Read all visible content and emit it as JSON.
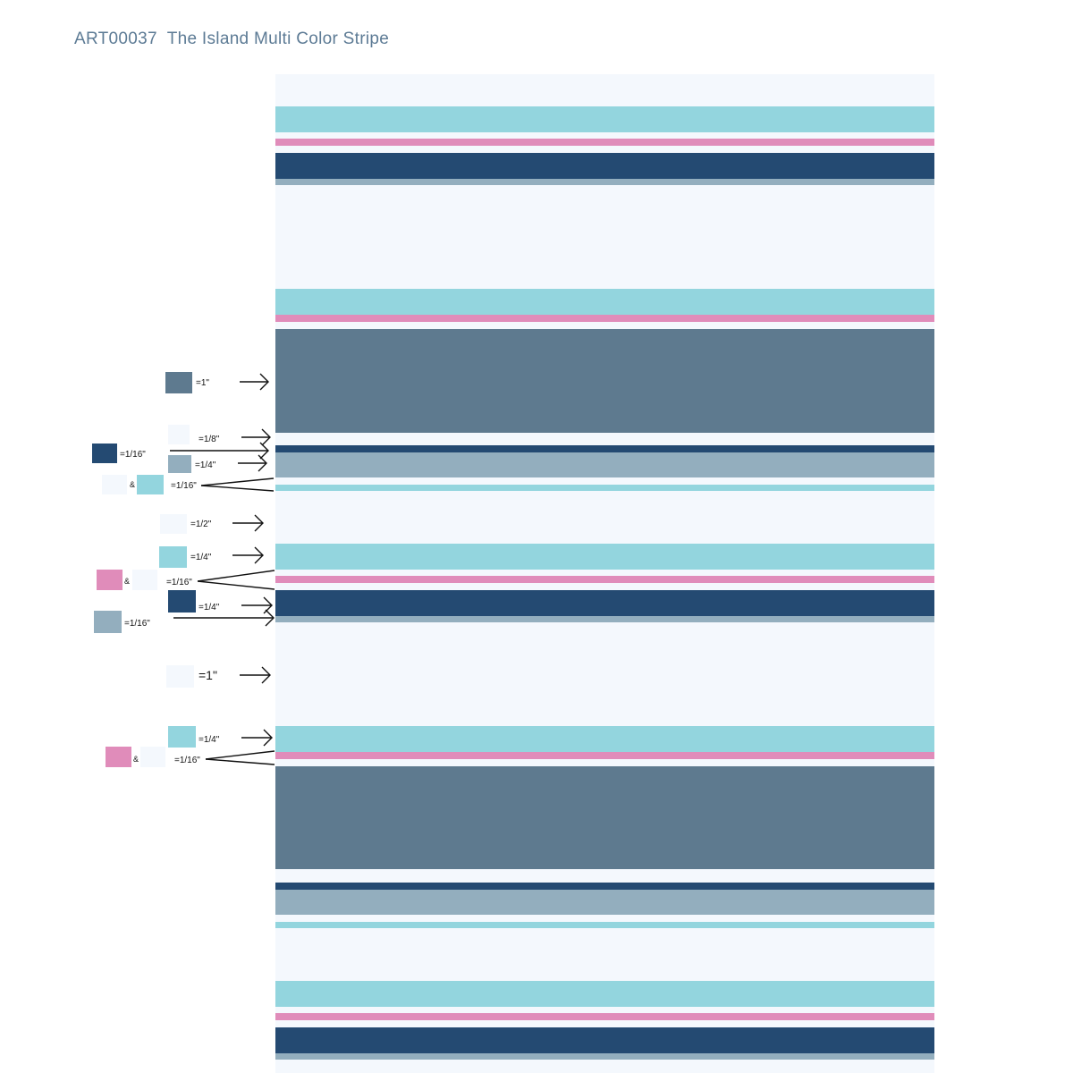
{
  "title": "ART00037  The Island Multi Color Stripe",
  "colors": {
    "background": "#f4f8fd",
    "aqua": "#93d5de",
    "pink": "#e08cba",
    "navy": "#244a72",
    "slate": "#5e7a8f",
    "steel": "#93aebe",
    "cream": "#f4f8fd"
  },
  "stripes": [
    {
      "color": "aqua"
    },
    {
      "color": "pink"
    },
    {
      "color": "navy"
    },
    {
      "color": "steel"
    },
    {
      "color": "aqua"
    },
    {
      "color": "pink"
    },
    {
      "color": "slate"
    },
    {
      "color": "navy"
    },
    {
      "color": "steel"
    },
    {
      "color": "aqua"
    },
    {
      "color": "aqua"
    },
    {
      "color": "pink"
    },
    {
      "color": "navy"
    },
    {
      "color": "steel"
    },
    {
      "color": "aqua"
    },
    {
      "color": "pink"
    },
    {
      "color": "slate"
    },
    {
      "color": "navy"
    },
    {
      "color": "steel"
    },
    {
      "color": "aqua"
    },
    {
      "color": "aqua"
    },
    {
      "color": "pink"
    },
    {
      "color": "navy"
    },
    {
      "color": "steel"
    }
  ],
  "legend": [
    {
      "swatches": [
        "slate"
      ],
      "text": "=1\"",
      "arrow_target": "slate-stripe"
    },
    {
      "swatches": [
        "cream"
      ],
      "text": "=1/8\"",
      "arrow_target": "cream-gap"
    },
    {
      "swatches": [
        "navy"
      ],
      "text": "=1/16\"",
      "arrow_target": "navy-stripe"
    },
    {
      "swatches": [
        "steel"
      ],
      "text": "=1/4\"",
      "arrow_target": "steel-stripe"
    },
    {
      "swatches": [
        "cream",
        "aqua"
      ],
      "joiner": "&",
      "text": "=1/16\"",
      "arrow_target": "cream-and-aqua"
    },
    {
      "swatches": [
        "cream"
      ],
      "text": "=1/2\"",
      "arrow_target": "cream-gap"
    },
    {
      "swatches": [
        "aqua"
      ],
      "text": "=1/4\"",
      "arrow_target": "aqua-stripe"
    },
    {
      "swatches": [
        "pink",
        "cream"
      ],
      "joiner": "&",
      "text": "=1/16\"",
      "arrow_target": "pink-and-cream"
    },
    {
      "swatches": [
        "navy"
      ],
      "text": "=1/4\"",
      "arrow_target": "navy-stripe"
    },
    {
      "swatches": [
        "steel"
      ],
      "text": "=1/16\"",
      "arrow_target": "steel-stripe"
    },
    {
      "swatches": [
        "cream"
      ],
      "text": "=1\"",
      "arrow_target": "cream-gap"
    },
    {
      "swatches": [
        "aqua"
      ],
      "text": "=1/4\"",
      "arrow_target": "aqua-stripe"
    },
    {
      "swatches": [
        "pink",
        "cream"
      ],
      "joiner": "&",
      "text": "=1/16\"",
      "arrow_target": "pink-and-cream"
    }
  ]
}
